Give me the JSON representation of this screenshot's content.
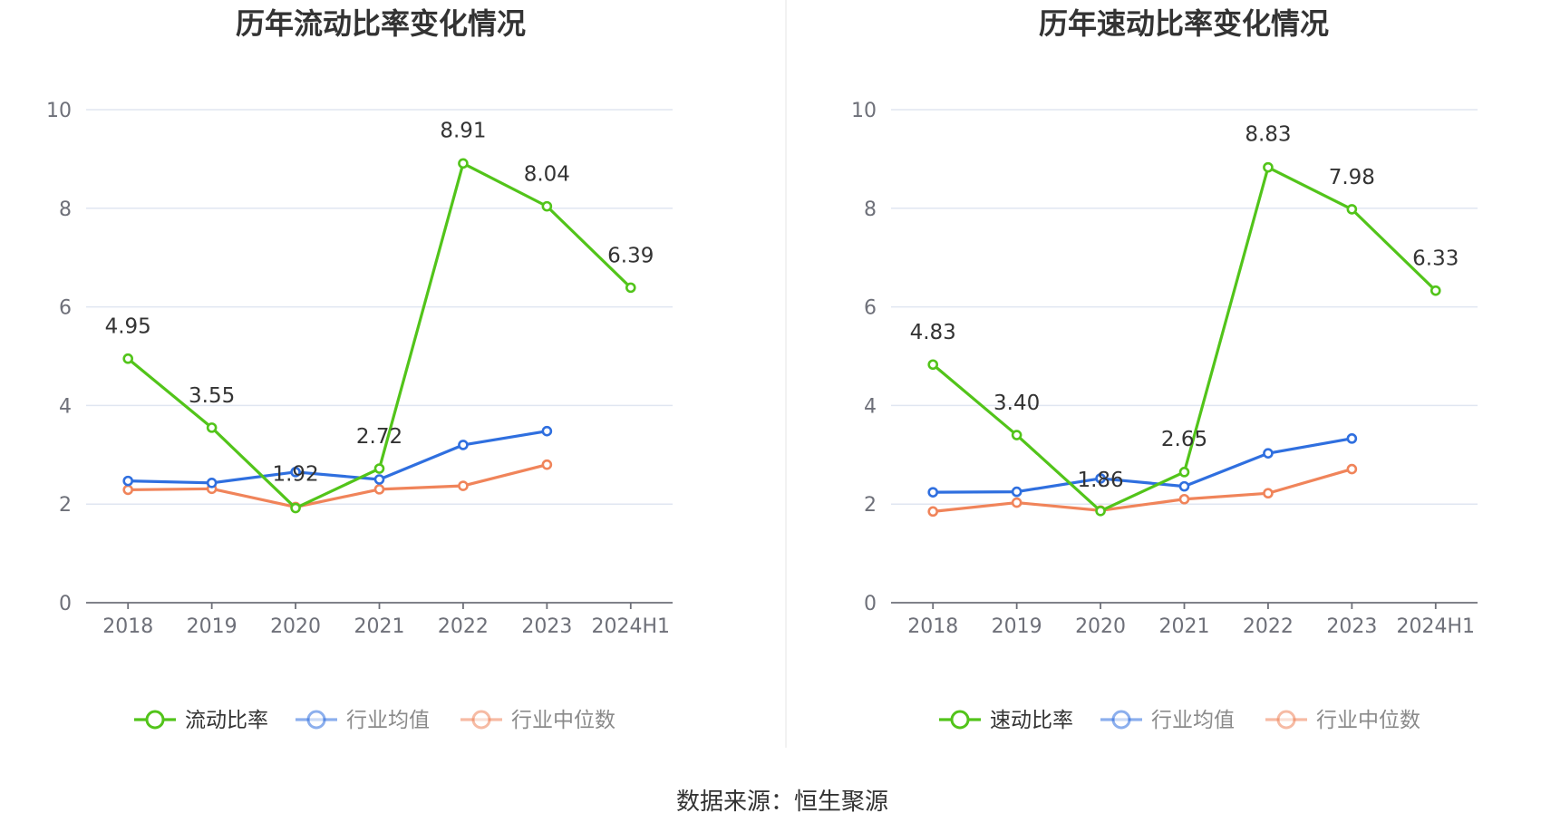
{
  "source_text": "数据来源：恒生聚源",
  "chart_data": [
    {
      "type": "line",
      "title": "历年流动比率变化情况",
      "categories": [
        "2018",
        "2019",
        "2020",
        "2021",
        "2022",
        "2023",
        "2024H1"
      ],
      "ylim": [
        0,
        10
      ],
      "yticks": [
        0,
        2,
        4,
        6,
        8,
        10
      ],
      "grid": true,
      "legend_position": "bottom",
      "series": [
        {
          "name": "流动比率",
          "color": "#52c41a",
          "labels": true,
          "values": [
            4.95,
            3.55,
            1.92,
            2.72,
            8.91,
            8.04,
            6.39
          ]
        },
        {
          "name": "行业均值",
          "color": "#2f6fdf",
          "labels": false,
          "values": [
            2.47,
            2.43,
            2.65,
            2.5,
            3.2,
            3.48,
            null
          ]
        },
        {
          "name": "行业中位数",
          "color": "#f0845a",
          "labels": false,
          "values": [
            2.29,
            2.31,
            1.94,
            2.3,
            2.37,
            2.8,
            null
          ]
        }
      ]
    },
    {
      "type": "line",
      "title": "历年速动比率变化情况",
      "categories": [
        "2018",
        "2019",
        "2020",
        "2021",
        "2022",
        "2023",
        "2024H1"
      ],
      "ylim": [
        0,
        10
      ],
      "yticks": [
        0,
        2,
        4,
        6,
        8,
        10
      ],
      "grid": true,
      "legend_position": "bottom",
      "series": [
        {
          "name": "速动比率",
          "color": "#52c41a",
          "labels": true,
          "values": [
            4.83,
            3.4,
            1.86,
            2.65,
            8.83,
            7.98,
            6.33
          ]
        },
        {
          "name": "行业均值",
          "color": "#2f6fdf",
          "labels": false,
          "values": [
            2.24,
            2.25,
            2.52,
            2.36,
            3.03,
            3.33,
            null
          ]
        },
        {
          "name": "行业中位数",
          "color": "#f0845a",
          "labels": false,
          "values": [
            1.85,
            2.03,
            1.87,
            2.1,
            2.22,
            2.71,
            null
          ]
        }
      ]
    }
  ]
}
